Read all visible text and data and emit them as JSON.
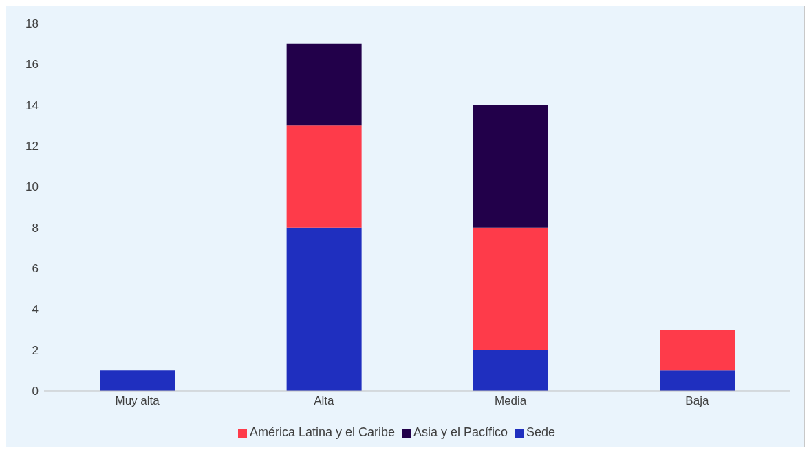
{
  "chart_data": {
    "type": "bar",
    "stacked": true,
    "categories": [
      "Muy alta",
      "Alta",
      "Media",
      "Baja"
    ],
    "series": [
      {
        "name": "Sede",
        "color": "#1f2fbf",
        "values": [
          1,
          8,
          2,
          1
        ]
      },
      {
        "name": "América Latina y el Caribe",
        "color": "#fe3b4a",
        "values": [
          0,
          5,
          6,
          2
        ]
      },
      {
        "name": "Asia y el Pacífico",
        "color": "#22004a",
        "values": [
          0,
          4,
          6,
          0
        ]
      }
    ],
    "ylim": [
      0,
      18
    ],
    "yticks": [
      0,
      2,
      4,
      6,
      8,
      10,
      12,
      14,
      16,
      18
    ],
    "legend": "bottom"
  }
}
